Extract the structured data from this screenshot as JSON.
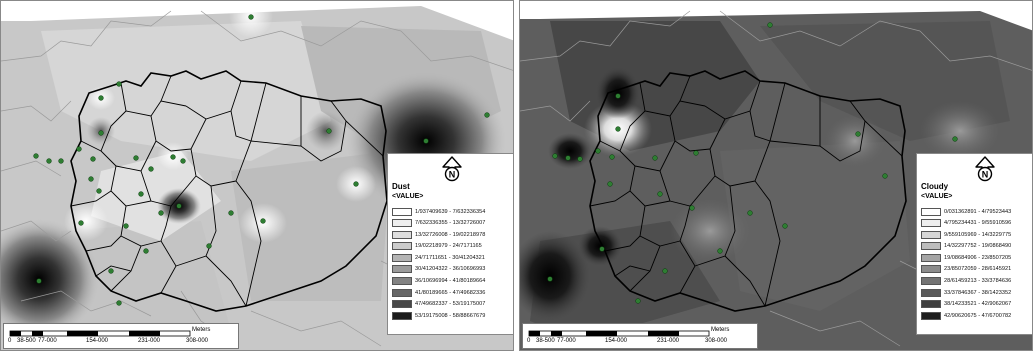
{
  "maps": [
    {
      "legend": {
        "title": "Dust",
        "subtitle": "<VALUE>",
        "items": [
          {
            "label": "1/937409639 - 7/632336354",
            "color": "#ffffff"
          },
          {
            "label": "7/632336355 - 13/32726007",
            "color": "#efefef"
          },
          {
            "label": "13/32726008 - 19/02218978",
            "color": "#dedede"
          },
          {
            "label": "19/02218979 - 24/7171165",
            "color": "#cccccc"
          },
          {
            "label": "24/71711651 - 30/41204321",
            "color": "#b4b4b4"
          },
          {
            "label": "30/41204322 - 36/10696993",
            "color": "#9b9b9b"
          },
          {
            "label": "36/10696994 - 41/80189664",
            "color": "#828282"
          },
          {
            "label": "41/80189665 - 47/49682336",
            "color": "#676767"
          },
          {
            "label": "47/49682337 - 53/19175007",
            "color": "#474747"
          },
          {
            "label": "53/19175008 - 58/88667679",
            "color": "#1c1c1c"
          }
        ]
      },
      "scale": {
        "unit": "Meters",
        "ticks": [
          "0",
          "38-500",
          "77-000",
          "154-000",
          "231-000",
          "308-000"
        ]
      }
    },
    {
      "legend": {
        "title": "Cloudy",
        "subtitle": "<VALUE>",
        "items": [
          {
            "label": "0/031362891 - 4/79523443",
            "color": "#ffffff"
          },
          {
            "label": "4/795234431 - 9/55910596",
            "color": "#eeeeee"
          },
          {
            "label": "9/559105969 - 14/3229775",
            "color": "#d6d6d6"
          },
          {
            "label": "14/32297752 - 19/0868490",
            "color": "#bdbdbd"
          },
          {
            "label": "19/08684906 - 23/8507205",
            "color": "#a4a4a4"
          },
          {
            "label": "23/85072059 - 28/6145921",
            "color": "#8c8c8c"
          },
          {
            "label": "28/61459213 - 33/3784636",
            "color": "#737373"
          },
          {
            "label": "33/37846367 - 38/1423352",
            "color": "#5a5a5a"
          },
          {
            "label": "38/14233521 - 42/9062067",
            "color": "#3e3e3e"
          },
          {
            "label": "42/90620675 - 47/6700782",
            "color": "#1e1e1e"
          }
        ]
      },
      "scale": {
        "unit": "Meters",
        "ticks": [
          "0",
          "38-500",
          "77-000",
          "154-000",
          "231-000",
          "308-000"
        ]
      }
    }
  ]
}
